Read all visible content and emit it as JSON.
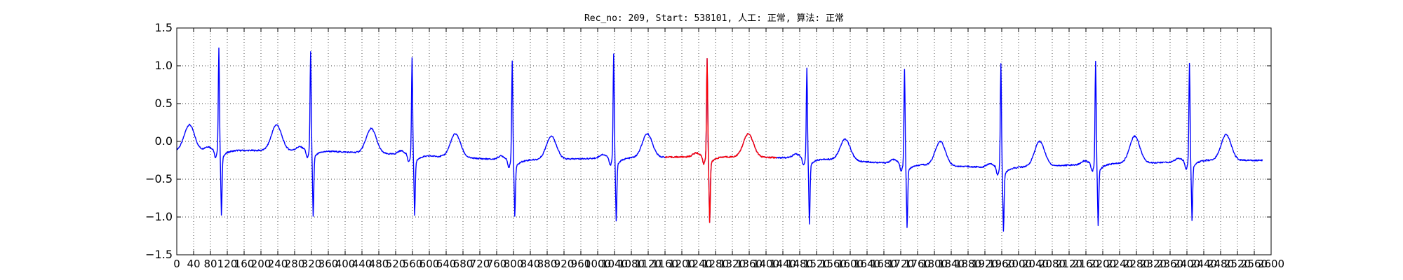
{
  "chart_data": {
    "type": "line",
    "title": "Rec_no: 209, Start: 538101, 人工: 正常, 算法: 正常",
    "xlabel": "",
    "ylabel": "",
    "xlim": [
      0,
      2600
    ],
    "ylim": [
      -1.5,
      1.5
    ],
    "yticks": [
      -1.5,
      -1.0,
      -0.5,
      0.0,
      0.5,
      1.0,
      1.5
    ],
    "ytick_labels": [
      "−1.5",
      "−1.0",
      "−0.5",
      "0.0",
      "0.5",
      "1.0",
      "1.5"
    ],
    "xticks": [
      0,
      40,
      80,
      120,
      160,
      200,
      240,
      280,
      320,
      360,
      400,
      440,
      480,
      520,
      560,
      600,
      640,
      680,
      720,
      760,
      800,
      840,
      880,
      920,
      960,
      1000,
      1040,
      1080,
      1120,
      1160,
      1200,
      1240,
      1280,
      1320,
      1360,
      1400,
      1440,
      1480,
      1520,
      1560,
      1600,
      1640,
      1680,
      1720,
      1760,
      1800,
      1840,
      1880,
      1920,
      1960,
      2000,
      2040,
      2080,
      2120,
      2160,
      2200,
      2240,
      2280,
      2320,
      2360,
      2400,
      2440,
      2480,
      2520,
      2560,
      2600
    ],
    "grid": true,
    "grid_style": "dotted",
    "beats": [
      {
        "r_x": 100,
        "r_amp": 1.24,
        "q_amp": -0.8,
        "t_amp": 0.22,
        "t_x": 30,
        "base": -0.12
      },
      {
        "r_x": 318,
        "r_amp": 1.18,
        "q_amp": -0.82,
        "t_amp": 0.22,
        "t_x": 237,
        "base": -0.12
      },
      {
        "r_x": 559,
        "r_amp": 1.1,
        "q_amp": -0.8,
        "t_amp": 0.17,
        "t_x": 462,
        "base": -0.18
      },
      {
        "r_x": 797,
        "r_amp": 1.07,
        "q_amp": -0.82,
        "t_amp": 0.1,
        "t_x": 662,
        "base": -0.25
      },
      {
        "r_x": 1038,
        "r_amp": 1.15,
        "q_amp": -0.88,
        "t_amp": 0.07,
        "t_x": 890,
        "base": -0.22
      },
      {
        "r_x": 1260,
        "r_amp": 1.1,
        "q_amp": -0.9,
        "t_amp": 0.1,
        "t_x": 1118,
        "base": -0.2
      },
      {
        "r_x": 1497,
        "r_amp": 0.97,
        "q_amp": -0.93,
        "t_amp": 0.1,
        "t_x": 1358,
        "base": -0.22
      },
      {
        "r_x": 1729,
        "r_amp": 0.95,
        "q_amp": -0.97,
        "t_amp": 0.03,
        "t_x": 1588,
        "base": -0.3
      },
      {
        "r_x": 1958,
        "r_amp": 1.03,
        "q_amp": -1.02,
        "t_amp": 0.0,
        "t_x": 1814,
        "base": -0.35
      },
      {
        "r_x": 2183,
        "r_amp": 1.06,
        "q_amp": -0.95,
        "t_amp": 0.0,
        "t_x": 2050,
        "base": -0.3
      },
      {
        "r_x": 2406,
        "r_amp": 1.04,
        "q_amp": -0.88,
        "t_amp": 0.07,
        "t_x": 2276,
        "base": -0.27
      }
    ],
    "trailing_t": {
      "t_x": 2493,
      "t_amp": 0.09,
      "base": -0.25
    },
    "end_x": 2580,
    "end_y": -0.3,
    "series": [
      {
        "color": "#0000ff",
        "x_range": [
          0,
          2580
        ]
      },
      {
        "color": "#ff0000",
        "x_range": [
          1160,
          1425
        ]
      }
    ]
  }
}
